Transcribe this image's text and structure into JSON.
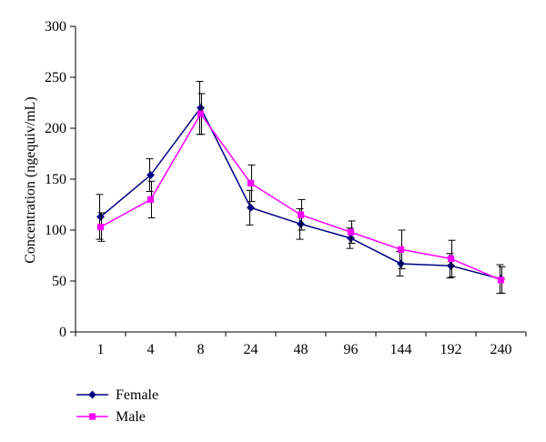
{
  "chart_data": {
    "type": "line",
    "categories": [
      "1",
      "4",
      "8",
      "24",
      "48",
      "96",
      "144",
      "192",
      "240"
    ],
    "ylabel": "Concentration (ngequiv/mL)",
    "xlabel": "",
    "ylim": [
      0,
      300
    ],
    "yticks": [
      "0",
      "50",
      "100",
      "150",
      "200",
      "250",
      "300"
    ],
    "grid": false,
    "legend_position": "bottom-left",
    "series": [
      {
        "name": "Female",
        "color": "#000080",
        "marker": "diamond",
        "values": [
          113,
          154,
          220,
          122,
          106,
          92,
          67,
          65,
          52
        ],
        "errors": [
          22,
          16,
          26,
          17,
          15,
          10,
          12,
          12,
          14
        ]
      },
      {
        "name": "Male",
        "color": "#ff00ff",
        "marker": "square",
        "values": [
          103,
          130,
          214,
          146,
          115,
          98,
          81,
          72,
          51
        ],
        "errors": [
          14,
          18,
          20,
          18,
          15,
          11,
          19,
          18,
          13
        ]
      }
    ]
  }
}
